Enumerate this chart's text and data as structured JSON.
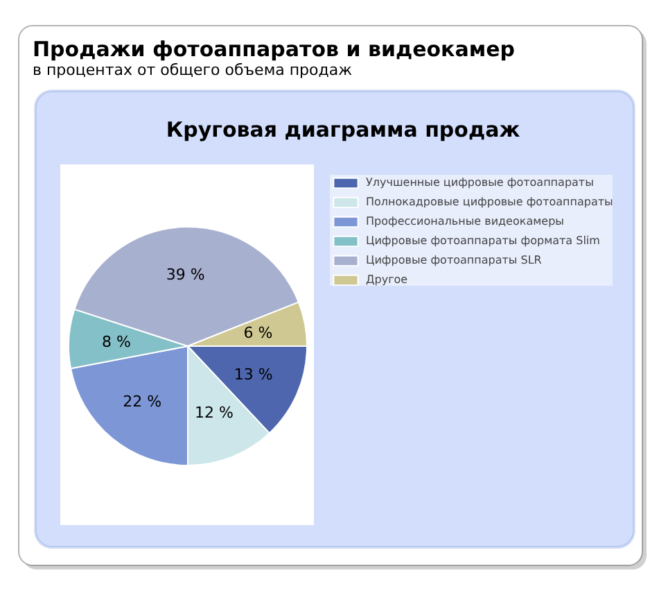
{
  "chart_data": {
    "type": "pie",
    "title": "Продажи фотоаппаратов и видеокамер",
    "subtitle": "в процентах от общего объема продаж",
    "annotations": [
      "Круговая диаграмма продаж"
    ],
    "categories": [
      "Улучшенные цифровые фотоаппараты",
      "Полнокадровые цифровые фотоаппараты",
      "Профессиональные видеокамеры",
      "Цифровые фотоаппараты формата Slim",
      "Цифровые фотоаппараты SLR",
      "Другое"
    ],
    "values": [
      13,
      12,
      22,
      8,
      39,
      6
    ],
    "colors": [
      "#4e66ae",
      "#cce6ea",
      "#7d96d6",
      "#84c0c8",
      "#a8b0d0",
      "#cfc892"
    ],
    "value_labels": [
      "13 %",
      "12 %",
      "22 %",
      "8 %",
      "39 %",
      "6 %"
    ],
    "legend": "top right"
  }
}
